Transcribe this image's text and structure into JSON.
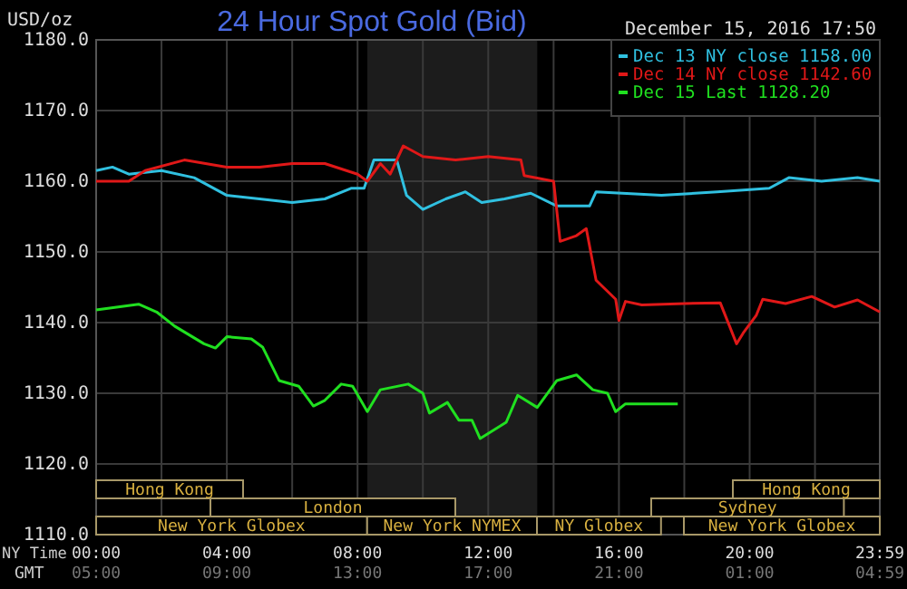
{
  "chart_data": {
    "type": "line",
    "title": "24 Hour Spot Gold (Bid)",
    "subtitle": "December 15, 2016 17:50",
    "ylabel": "USD/oz",
    "xlabel": "NY Time",
    "x2label": "GMT",
    "xlim": [
      0,
      23.983
    ],
    "xticks": [
      {
        "value": 0,
        "label": "00:00"
      },
      {
        "value": 2,
        "label": null
      },
      {
        "value": 4,
        "label": "04:00"
      },
      {
        "value": 6,
        "label": null
      },
      {
        "value": 8,
        "label": "08:00"
      },
      {
        "value": 10,
        "label": null
      },
      {
        "value": 12,
        "label": "12:00"
      },
      {
        "value": 14,
        "label": null
      },
      {
        "value": 16,
        "label": "16:00"
      },
      {
        "value": 18,
        "label": null
      },
      {
        "value": 20,
        "label": "20:00"
      },
      {
        "value": 22,
        "label": null
      },
      {
        "value": 23.983,
        "label": "23:59"
      }
    ],
    "x2lim": [
      "2016-12-15T05:00",
      "2016-12-16T04:59"
    ],
    "x2ticks": [
      {
        "value": "2016-12-15T05:00",
        "label": "05:00"
      },
      {
        "value": "2016-12-15T09:00",
        "label": "09:00"
      },
      {
        "value": "2016-12-15T13:00",
        "label": "13:00"
      },
      {
        "value": "2016-12-15T17:00",
        "label": "17:00"
      },
      {
        "value": "2016-12-15T21:00",
        "label": "21:00"
      },
      {
        "value": "2016-12-16T01:00",
        "label": "01:00"
      },
      {
        "value": "2016-12-16T04:59",
        "label": "04:59"
      }
    ],
    "ylim": [
      1110,
      1180
    ],
    "yticks": [
      {
        "value": 1110,
        "label": "1110.0"
      },
      {
        "value": 1120,
        "label": "1120.0"
      },
      {
        "value": 1130,
        "label": "1130.0"
      },
      {
        "value": 1140,
        "label": "1140.0"
      },
      {
        "value": 1150,
        "label": "1150.0"
      },
      {
        "value": 1160,
        "label": "1160.0"
      },
      {
        "value": 1170,
        "label": "1170.0"
      },
      {
        "value": 1180,
        "label": "1180.0"
      }
    ],
    "grid": true,
    "legend": "top right",
    "bands": [
      {
        "axis": "x",
        "from": 8.3,
        "to": 13.5,
        "color": "#1c1c1c"
      }
    ],
    "annotations": [
      "Hong Kong",
      "London",
      "New York Globex",
      "New York NYMEX",
      "NY Globex",
      "Sydney",
      "New York Globex",
      "Hong Kong"
    ],
    "series": [
      {
        "name": "Dec 13 NY close 1158.00",
        "color": "#30c0e0",
        "x": [
          0,
          0.5,
          1,
          2,
          3,
          4,
          5,
          6,
          7,
          7.8,
          8.2,
          8.5,
          9.2,
          9.5,
          10,
          10.7,
          11.3,
          11.8,
          12.5,
          13.3,
          14.1,
          15.1,
          15.3,
          17.3,
          19,
          20.6,
          21.2,
          22.2,
          23.3,
          23.983
        ],
        "values": [
          1161.5,
          1162,
          1161,
          1161.5,
          1160.5,
          1158,
          1157.5,
          1157,
          1157.5,
          1159,
          1159,
          1163,
          1163,
          1158,
          1156,
          1157.5,
          1158.5,
          1157,
          1157.5,
          1158.3,
          1156.5,
          1156.5,
          1158.5,
          1158,
          1158.5,
          1159,
          1160.5,
          1160,
          1160.5,
          1160
        ]
      },
      {
        "name": "Dec 14 NY close 1142.60",
        "color": "#e01818",
        "x": [
          0,
          1,
          1.5,
          2.7,
          4,
          5,
          6,
          7,
          8,
          8.3,
          8.7,
          9,
          9.4,
          10,
          11,
          12,
          13,
          13.1,
          14,
          14.2,
          14.7,
          15,
          15.3,
          15.9,
          16,
          16.2,
          16.7,
          18,
          19.1,
          19.6,
          19.8,
          20.2,
          20.4,
          21.1,
          21.9,
          22.6,
          23.3,
          23.983
        ],
        "values": [
          1160,
          1160,
          1161.5,
          1163,
          1162,
          1162,
          1162.5,
          1162.5,
          1161,
          1160,
          1162.5,
          1161,
          1165,
          1163.5,
          1163,
          1163.5,
          1163,
          1160.8,
          1160,
          1151.5,
          1152.3,
          1153.3,
          1146,
          1143.3,
          1140.3,
          1143,
          1142.5,
          1142.7,
          1142.8,
          1137,
          1138.5,
          1141,
          1143.3,
          1142.7,
          1143.7,
          1142.2,
          1143.2,
          1141.5
        ]
      },
      {
        "name": "Dec 15 Last 1128.20",
        "color": "#20e020",
        "x": [
          0,
          1.3,
          1.85,
          2.4,
          3.3,
          3.65,
          4,
          4.75,
          5.1,
          5.6,
          6.2,
          6.65,
          7,
          7.5,
          7.85,
          8.3,
          8.7,
          9.55,
          10,
          10.2,
          10.75,
          11.1,
          11.5,
          11.75,
          12.55,
          12.9,
          13.5,
          14.1,
          14.7,
          15.2,
          15.65,
          15.9,
          16.2,
          17.8
        ],
        "values": [
          1141.8,
          1142.6,
          1141.5,
          1139.5,
          1137,
          1136.4,
          1138,
          1137.7,
          1136.5,
          1131.8,
          1131,
          1128.2,
          1129,
          1131.3,
          1131,
          1127.4,
          1130.5,
          1131.3,
          1130,
          1127.2,
          1128.7,
          1126.2,
          1126.2,
          1123.6,
          1125.9,
          1129.7,
          1128,
          1131.8,
          1132.6,
          1130.5,
          1130,
          1127.4,
          1128.5,
          1128.5
        ]
      }
    ]
  }
}
